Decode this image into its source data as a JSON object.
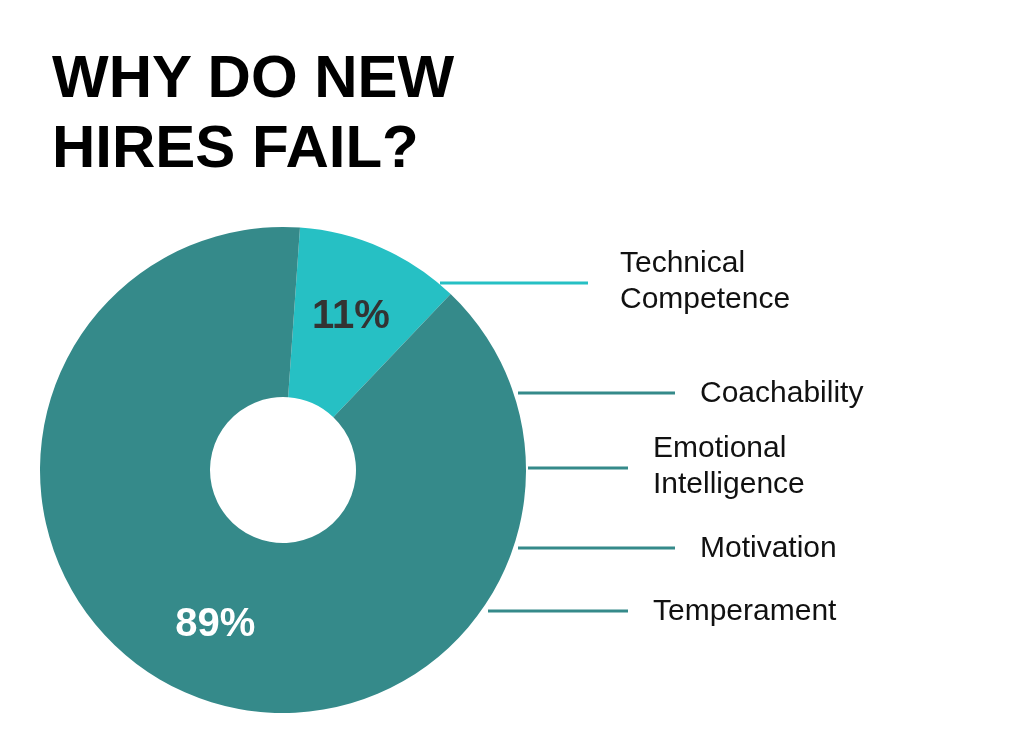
{
  "chart_data": {
    "type": "donut",
    "title": "WHY DO NEW HIRES FAIL?",
    "categories": [
      "Technical Competence",
      null
    ],
    "values": [
      11,
      89
    ],
    "value_labels": [
      "11%",
      "89%"
    ],
    "colors": [
      "#26c0c4",
      "#358a8a"
    ],
    "annotations": [
      "Coachability",
      "Emotional Intelligence",
      "Motivation",
      "Temperament"
    ]
  }
}
